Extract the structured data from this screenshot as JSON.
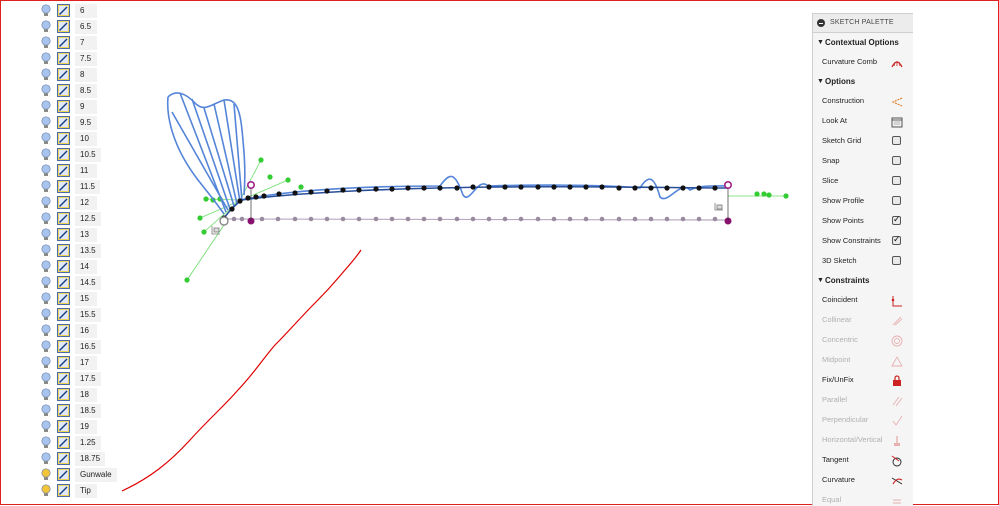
{
  "browser": {
    "items": [
      {
        "label": "6",
        "bulb": "blue"
      },
      {
        "label": "6.5",
        "bulb": "blue"
      },
      {
        "label": "7",
        "bulb": "blue"
      },
      {
        "label": "7.5",
        "bulb": "blue"
      },
      {
        "label": "8",
        "bulb": "blue"
      },
      {
        "label": "8.5",
        "bulb": "blue"
      },
      {
        "label": "9",
        "bulb": "blue"
      },
      {
        "label": "9.5",
        "bulb": "blue"
      },
      {
        "label": "10",
        "bulb": "blue"
      },
      {
        "label": "10.5",
        "bulb": "blue"
      },
      {
        "label": "11",
        "bulb": "blue"
      },
      {
        "label": "11.5",
        "bulb": "blue"
      },
      {
        "label": "12",
        "bulb": "blue"
      },
      {
        "label": "12.5",
        "bulb": "blue"
      },
      {
        "label": "13",
        "bulb": "blue"
      },
      {
        "label": "13.5",
        "bulb": "blue"
      },
      {
        "label": "14",
        "bulb": "blue"
      },
      {
        "label": "14.5",
        "bulb": "blue"
      },
      {
        "label": "15",
        "bulb": "blue"
      },
      {
        "label": "15.5",
        "bulb": "blue"
      },
      {
        "label": "16",
        "bulb": "blue"
      },
      {
        "label": "16.5",
        "bulb": "blue"
      },
      {
        "label": "17",
        "bulb": "blue"
      },
      {
        "label": "17.5",
        "bulb": "blue"
      },
      {
        "label": "18",
        "bulb": "blue"
      },
      {
        "label": "18.5",
        "bulb": "blue"
      },
      {
        "label": "19",
        "bulb": "blue"
      },
      {
        "label": "1.25",
        "bulb": "blue"
      },
      {
        "label": "18.75",
        "bulb": "blue"
      },
      {
        "label": "Gunwale",
        "bulb": "yellow"
      },
      {
        "label": "Tip",
        "bulb": "yellow"
      }
    ]
  },
  "palette": {
    "title": "SKETCH PALETTE",
    "sections": {
      "contextual": "Contextual Options",
      "options": "Options",
      "constraints": "Constraints"
    },
    "contextual_items": [
      {
        "label": "Curvature Comb",
        "icon": "curvature-comb-icon"
      }
    ],
    "option_items": [
      {
        "label": "Construction",
        "control": "icon",
        "icon": "construction-icon"
      },
      {
        "label": "Look At",
        "control": "icon",
        "icon": "look-at-icon"
      },
      {
        "label": "Sketch Grid",
        "control": "checkbox",
        "checked": false
      },
      {
        "label": "Snap",
        "control": "checkbox",
        "checked": false
      },
      {
        "label": "Slice",
        "control": "checkbox",
        "checked": false
      },
      {
        "label": "Show Profile",
        "control": "checkbox",
        "checked": false
      },
      {
        "label": "Show Points",
        "control": "checkbox",
        "checked": true
      },
      {
        "label": "Show Constraints",
        "control": "checkbox",
        "checked": true
      },
      {
        "label": "3D Sketch",
        "control": "checkbox",
        "checked": false
      }
    ],
    "constraint_items": [
      {
        "label": "Coincident",
        "enabled": true,
        "icon": "coincident-icon"
      },
      {
        "label": "Collinear",
        "enabled": false,
        "icon": "collinear-icon"
      },
      {
        "label": "Concentric",
        "enabled": false,
        "icon": "concentric-icon"
      },
      {
        "label": "Midpoint",
        "enabled": false,
        "icon": "midpoint-icon"
      },
      {
        "label": "Fix/UnFix",
        "enabled": true,
        "icon": "fix-lock-icon"
      },
      {
        "label": "Parallel",
        "enabled": false,
        "icon": "parallel-icon"
      },
      {
        "label": "Perpendicular",
        "enabled": false,
        "icon": "perpendicular-icon"
      },
      {
        "label": "Horizontal/Vertical",
        "enabled": false,
        "icon": "horizontal-vertical-icon"
      },
      {
        "label": "Tangent",
        "enabled": true,
        "icon": "tangent-icon"
      },
      {
        "label": "Curvature",
        "enabled": true,
        "icon": "curvature-icon"
      },
      {
        "label": "Equal",
        "enabled": false,
        "icon": "equal-icon"
      }
    ]
  },
  "colors": {
    "frame": "#e02020",
    "spline": "#4f78c8",
    "comb": "#5585d8",
    "point": "#111111",
    "ghost_point": "#a890a8",
    "constraint_green": "#33cc33",
    "pen": "#e00000",
    "endpoint": "#a0208a"
  }
}
